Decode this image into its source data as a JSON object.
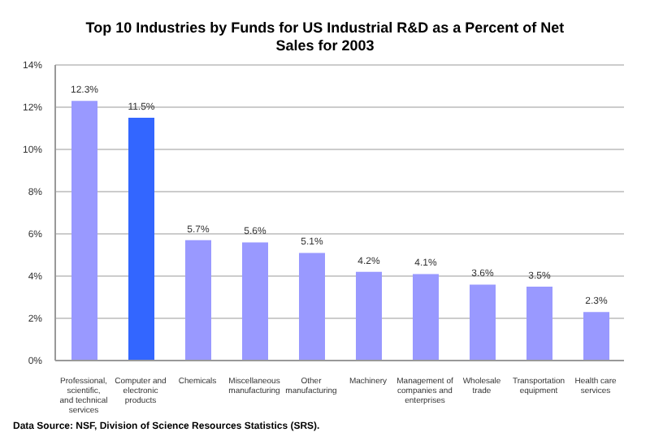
{
  "chart_data": {
    "type": "bar",
    "title": "Top 10 Industries by Funds for US Industrial R&D as a Percent of Net Sales for 2003",
    "categories": [
      "Professional, scientific, and technical services",
      "Computer and electronic products",
      "Chemicals",
      "Miscellaneous manufacturing",
      "Other manufacturing",
      "Machinery",
      "Management of companies and enterprises",
      "Wholesale trade",
      "Transportation equipment",
      "Health care services"
    ],
    "values": [
      12.3,
      11.5,
      5.7,
      5.6,
      5.1,
      4.2,
      4.1,
      3.6,
      3.5,
      2.3
    ],
    "value_labels": [
      "12.3%",
      "11.5%",
      "5.7%",
      "5.6%",
      "5.1%",
      "4.2%",
      "4.1%",
      "3.6%",
      "3.5%",
      "2.3%"
    ],
    "colors": [
      "#9999ff",
      "#3366ff",
      "#9999ff",
      "#9999ff",
      "#9999ff",
      "#9999ff",
      "#9999ff",
      "#9999ff",
      "#9999ff",
      "#9999ff"
    ],
    "ylim": [
      0,
      14
    ],
    "yticks": [
      {
        "value": 0,
        "label": "0%"
      },
      {
        "value": 2,
        "label": "2%"
      },
      {
        "value": 4,
        "label": "4%"
      },
      {
        "value": 6,
        "label": "6%"
      },
      {
        "value": 8,
        "label": "8%"
      },
      {
        "value": 10,
        "label": "10%"
      },
      {
        "value": 12,
        "label": "12%"
      },
      {
        "value": 14,
        "label": "14%"
      }
    ],
    "grid": "y",
    "annotations": [
      "Data Source: NSF, Division of Science Resources Statistics (SRS)."
    ]
  }
}
